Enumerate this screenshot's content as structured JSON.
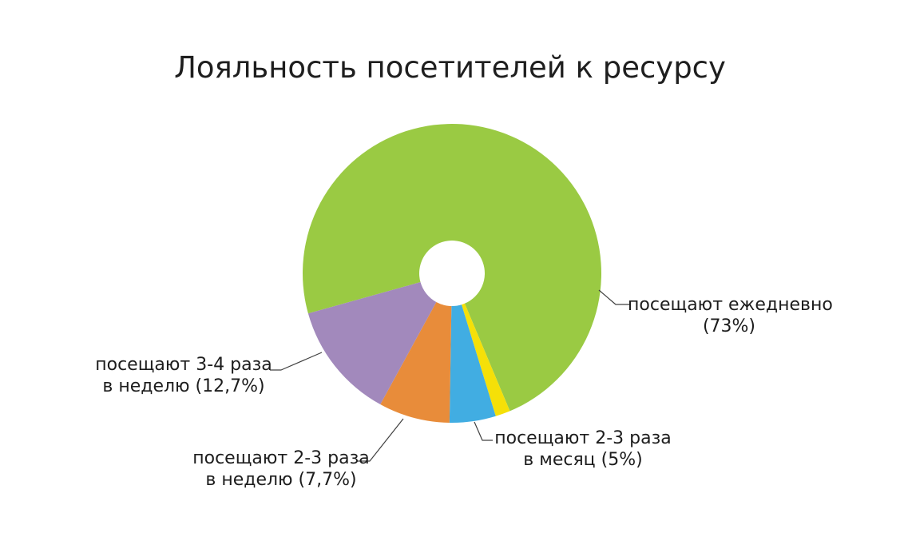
{
  "title": "Лояльность посетителей к ресурсу",
  "colors": {
    "background": "#FFFFFF",
    "text": "#1D1D1D",
    "leader_line": "#404040",
    "green": "#9ACA43",
    "yellow": "#F5E008",
    "blue": "#41ADE2",
    "orange": "#E88C3A",
    "purple": "#A289BC"
  },
  "chart_data": {
    "type": "pie",
    "title": "Лояльность посетителей к ресурсу",
    "donut": true,
    "donut_hole_ratio": 0.22,
    "direction": "clockwise",
    "start_angle_deg": 254.4,
    "unit": "percent",
    "legend": "none",
    "slices": [
      {
        "name": "посещают ежедневно",
        "value": 73,
        "color": "#9ACA43",
        "label_line1": "посещают ежедневно",
        "label_line2": "(73%)"
      },
      {
        "name": "",
        "value": 1.6,
        "color": "#F5E008",
        "label_line1": "",
        "label_line2": ""
      },
      {
        "name": "посещают 2-3 раза в месяц",
        "value": 5,
        "color": "#41ADE2",
        "label_line1": "посещают 2-3 раза",
        "label_line2": "в месяц (5%)"
      },
      {
        "name": "посещают 2-3 раза в неделю",
        "value": 7.7,
        "color": "#E88C3A",
        "label_line1": "посещают 2-3 раза",
        "label_line2": "в неделю (7,7%)"
      },
      {
        "name": "посещают 3-4 раза в неделю",
        "value": 12.7,
        "color": "#A289BC",
        "label_line1": "посещают 3-4 раза",
        "label_line2": "в неделю (12,7%)"
      }
    ]
  }
}
